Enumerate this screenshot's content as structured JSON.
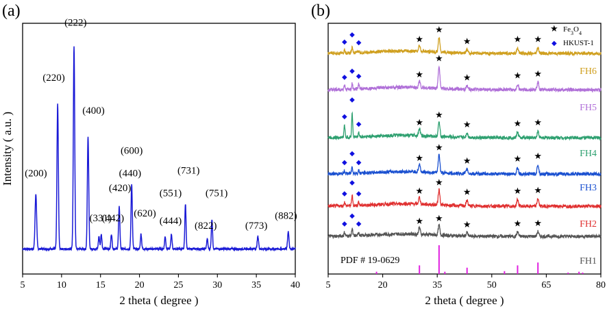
{
  "chart_data": [
    {
      "type": "line",
      "panel_label": "(a)",
      "xlabel": "2 theta ( degree )",
      "ylabel": "Intensity ( a.u. )",
      "xlim": [
        5,
        40
      ],
      "xticks": [
        "5",
        "10",
        "15",
        "20",
        "25",
        "30",
        "35",
        "40"
      ],
      "color": "#1a1ad6",
      "series": [
        {
          "name": "HKUST-1",
          "baseline": 0.1,
          "peaks": [
            {
              "x": 6.7,
              "h": 0.22,
              "w": 0.18
            },
            {
              "x": 9.5,
              "h": 0.58,
              "w": 0.16
            },
            {
              "x": 11.6,
              "h": 0.81,
              "w": 0.16
            },
            {
              "x": 13.4,
              "h": 0.45,
              "w": 0.16
            },
            {
              "x": 14.8,
              "h": 0.05,
              "w": 0.14
            },
            {
              "x": 15.1,
              "h": 0.06,
              "w": 0.14
            },
            {
              "x": 16.4,
              "h": 0.06,
              "w": 0.14
            },
            {
              "x": 17.4,
              "h": 0.17,
              "w": 0.15
            },
            {
              "x": 19.0,
              "h": 0.26,
              "w": 0.15
            },
            {
              "x": 20.2,
              "h": 0.06,
              "w": 0.14
            },
            {
              "x": 23.3,
              "h": 0.05,
              "w": 0.14
            },
            {
              "x": 24.1,
              "h": 0.06,
              "w": 0.14
            },
            {
              "x": 25.9,
              "h": 0.18,
              "w": 0.14
            },
            {
              "x": 28.7,
              "h": 0.04,
              "w": 0.14
            },
            {
              "x": 29.3,
              "h": 0.12,
              "w": 0.14
            },
            {
              "x": 35.2,
              "h": 0.05,
              "w": 0.16
            },
            {
              "x": 39.1,
              "h": 0.07,
              "w": 0.16
            }
          ]
        }
      ],
      "annotations": [
        {
          "text": "(200)",
          "x": 6.7,
          "y": 0.39
        },
        {
          "text": "(220)",
          "x": 9.0,
          "y": 0.77
        },
        {
          "text": "(222)",
          "x": 11.8,
          "y": 0.99
        },
        {
          "text": "(400)",
          "x": 14.1,
          "y": 0.64
        },
        {
          "text": "(331)",
          "x": 15.0,
          "y": 0.21
        },
        {
          "text": "(420)",
          "x": 17.5,
          "y": 0.33
        },
        {
          "text": "(442)",
          "x": 16.6,
          "y": 0.21
        },
        {
          "text": "(440)",
          "x": 18.8,
          "y": 0.39
        },
        {
          "text": "(600)",
          "x": 19.0,
          "y": 0.48
        },
        {
          "text": "(620)",
          "x": 20.7,
          "y": 0.23
        },
        {
          "text": "(551)",
          "x": 24.0,
          "y": 0.31
        },
        {
          "text": "(444)",
          "x": 24.0,
          "y": 0.2
        },
        {
          "text": "(731)",
          "x": 26.3,
          "y": 0.4
        },
        {
          "text": "(822)",
          "x": 28.5,
          "y": 0.18
        },
        {
          "text": "(751)",
          "x": 29.9,
          "y": 0.31
        },
        {
          "text": "(773)",
          "x": 35.0,
          "y": 0.18
        },
        {
          "text": "(882)",
          "x": 38.8,
          "y": 0.22
        }
      ]
    },
    {
      "type": "line",
      "panel_label": "(b)",
      "xlabel": "2 theta ( degree )",
      "xlim": [
        5,
        80
      ],
      "xticks": [
        "5",
        "20",
        "35",
        "50",
        "65",
        "80"
      ],
      "legend": [
        {
          "symbol": "★",
          "label": "Fe3O4"
        },
        {
          "symbol": "◆",
          "label": "HKUST-1"
        }
      ],
      "fe3o4_positions": [
        30.1,
        35.5,
        43.2,
        57.1,
        62.7
      ],
      "hkust_positions": [
        9.5,
        11.6,
        13.4
      ],
      "reference": {
        "label": "PDF # 19-0629",
        "color": "#e020e0",
        "lines": [
          {
            "x": 18.3,
            "h": 0.08
          },
          {
            "x": 30.1,
            "h": 0.3
          },
          {
            "x": 35.5,
            "h": 1.0
          },
          {
            "x": 37.1,
            "h": 0.08
          },
          {
            "x": 43.2,
            "h": 0.22
          },
          {
            "x": 53.5,
            "h": 0.1
          },
          {
            "x": 57.1,
            "h": 0.3
          },
          {
            "x": 62.7,
            "h": 0.4
          },
          {
            "x": 71.0,
            "h": 0.05
          },
          {
            "x": 74.0,
            "h": 0.08
          },
          {
            "x": 75.0,
            "h": 0.05
          }
        ]
      },
      "series": [
        {
          "name": "FH1",
          "color": "#555555",
          "hk": [
            0.4,
            0.8,
            0.4
          ],
          "fe": [
            0.7,
            1.0,
            0.35,
            0.45,
            0.5
          ],
          "hk_marks": [
            0,
            1,
            2
          ]
        },
        {
          "name": "FH2",
          "color": "#e03030",
          "hk": [
            0.4,
            1.1,
            0.4
          ],
          "fe": [
            0.7,
            1.6,
            0.6,
            0.7,
            0.8
          ],
          "hk_marks": [
            0,
            1,
            2
          ]
        },
        {
          "name": "FH3",
          "color": "#1a50d0",
          "hk": [
            0.3,
            0.8,
            0.3
          ],
          "fe": [
            0.8,
            1.9,
            0.5,
            0.7,
            1.0
          ],
          "hk_marks": [
            0,
            1,
            2
          ]
        },
        {
          "name": "FH4",
          "color": "#2ea070",
          "hk": [
            1.3,
            2.6,
            0.5
          ],
          "fe": [
            0.7,
            1.5,
            0.5,
            0.6,
            0.7
          ],
          "hk_marks": [
            0,
            1,
            2
          ]
        },
        {
          "name": "FH5",
          "color": "#b070d8",
          "hk": [
            0.4,
            0.6,
            0.5
          ],
          "fe": [
            0.7,
            2.4,
            0.4,
            0.6,
            0.8
          ],
          "hk_marks": [
            0,
            1,
            2
          ]
        },
        {
          "name": "FH6",
          "color": "#d0a020",
          "hk": [
            0.3,
            0.6,
            0.2
          ],
          "fe": [
            0.6,
            1.6,
            0.4,
            0.6,
            0.6
          ],
          "hk_marks": [
            0,
            1,
            2
          ]
        }
      ]
    }
  ]
}
